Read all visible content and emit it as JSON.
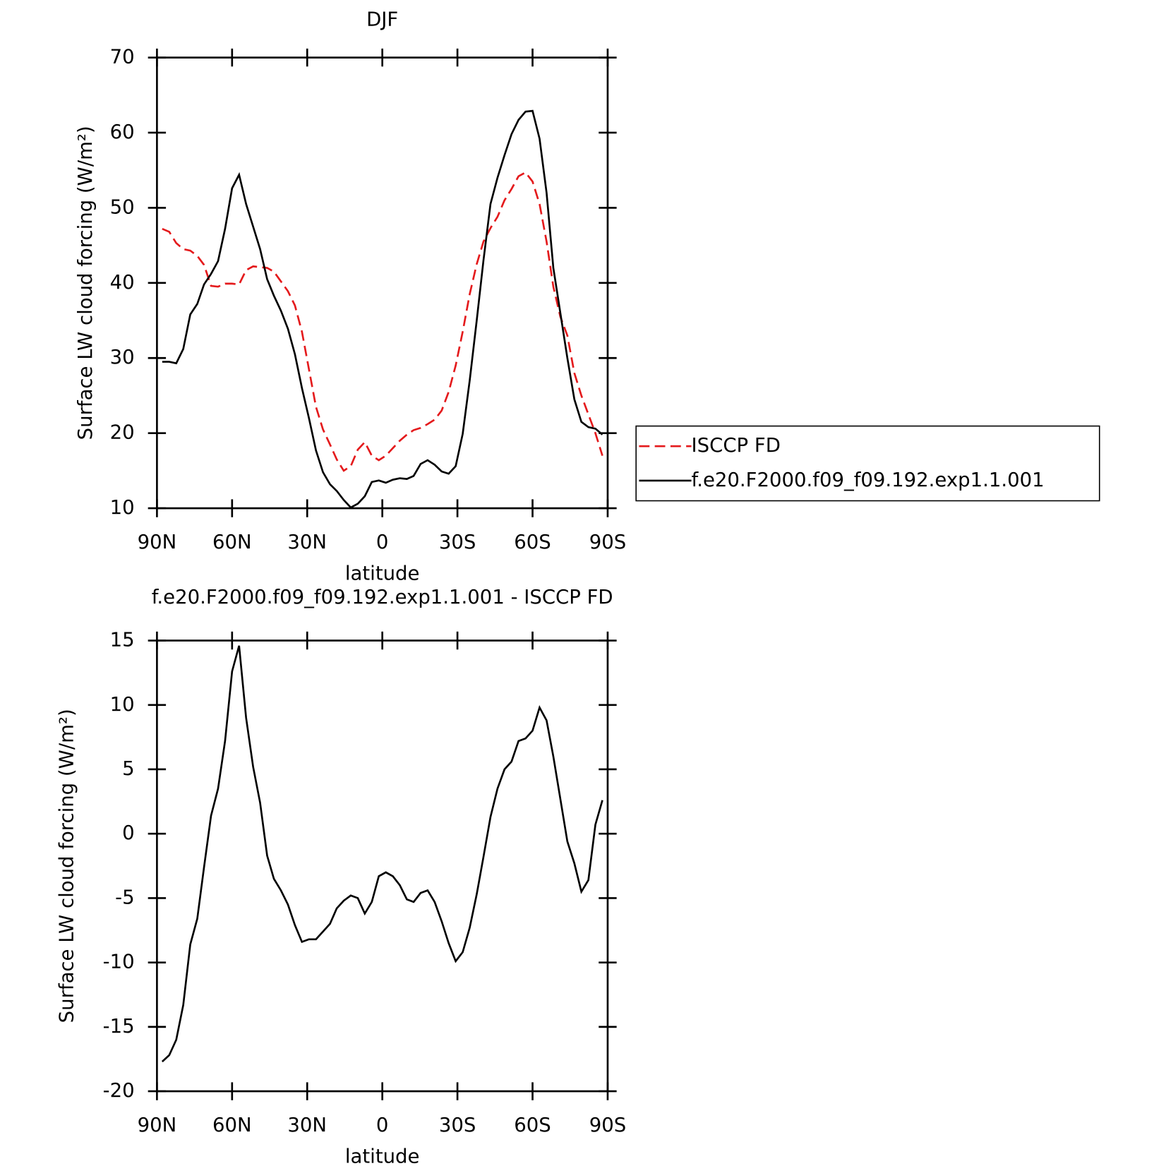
{
  "chart_data": [
    {
      "type": "line",
      "title": "DJF",
      "xlabel": "latitude",
      "ylabel": "Surface LW cloud forcing (W/m²)",
      "x": [
        87.9,
        85.1,
        82.3,
        79.5,
        76.7,
        73.9,
        71.2,
        68.4,
        65.6,
        62.8,
        60.0,
        57.2,
        54.4,
        51.6,
        48.8,
        46.0,
        43.3,
        40.5,
        37.7,
        34.9,
        32.1,
        29.3,
        26.5,
        23.7,
        20.9,
        18.2,
        15.4,
        12.6,
        9.8,
        7.0,
        4.2,
        1.4,
        -1.4,
        -4.2,
        -7.0,
        -9.8,
        -12.5,
        -15.3,
        -18.1,
        -20.9,
        -23.7,
        -26.5,
        -29.3,
        -32.1,
        -34.9,
        -37.7,
        -40.4,
        -43.2,
        -46.0,
        -48.8,
        -51.6,
        -54.4,
        -57.2,
        -60.0,
        -62.8,
        -65.6,
        -68.3,
        -71.1,
        -73.9,
        -76.7,
        -79.5,
        -82.3,
        -85.1,
        -87.9
      ],
      "series": [
        {
          "name": "ISCCP FD",
          "color": "#e41a1c",
          "dash": "dashed",
          "values": [
            47.2,
            46.8,
            45.3,
            44.5,
            44.3,
            43.6,
            42.4,
            39.6,
            39.5,
            39.9,
            39.9,
            39.8,
            41.7,
            42.2,
            42.1,
            42.0,
            41.5,
            40.2,
            38.9,
            37.0,
            33.5,
            28.5,
            23.5,
            20.5,
            18.5,
            16.5,
            15.0,
            15.6,
            17.8,
            18.8,
            17.0,
            16.4,
            17.0,
            18.0,
            19.0,
            19.8,
            20.4,
            20.7,
            21.2,
            21.8,
            23.0,
            25.5,
            29.0,
            33.5,
            38.5,
            42.5,
            45.5,
            47.3,
            48.8,
            51.0,
            52.5,
            54.2,
            54.7,
            53.5,
            50.5,
            45.5,
            39.5,
            35.5,
            33.0,
            28.0,
            25.0,
            22.5,
            20.0,
            17.0
          ]
        },
        {
          "name": "f.e20.F2000.f09_f09.192.exp1.1.001",
          "color": "#000000",
          "dash": "solid",
          "values": [
            29.5,
            29.5,
            29.3,
            31.2,
            35.8,
            37.2,
            39.8,
            41.2,
            42.9,
            47.2,
            52.6,
            54.4,
            50.5,
            47.5,
            44.5,
            40.5,
            38.3,
            36.3,
            33.9,
            30.5,
            26.0,
            22.0,
            17.7,
            14.8,
            13.2,
            12.3,
            11.1,
            10.1,
            10.6,
            11.6,
            13.5,
            13.7,
            13.4,
            13.8,
            14.0,
            13.9,
            14.3,
            15.9,
            16.4,
            15.8,
            14.9,
            14.6,
            15.6,
            19.9,
            27.0,
            35.0,
            43.0,
            50.5,
            54.0,
            57.0,
            59.8,
            61.7,
            62.8,
            62.9,
            59.2,
            52.0,
            42.0,
            36.0,
            30.0,
            24.5,
            21.5,
            20.8,
            20.6,
            19.8
          ]
        }
      ],
      "xlim": [
        90,
        -90
      ],
      "xticks": [
        {
          "value": 90,
          "label": "90N"
        },
        {
          "value": 60,
          "label": "60N"
        },
        {
          "value": 30,
          "label": "30N"
        },
        0,
        {
          "value": -30,
          "label": "30S"
        },
        {
          "value": -60,
          "label": "60S"
        },
        {
          "value": -90,
          "label": "90S"
        }
      ],
      "ylim": [
        10,
        70
      ],
      "yticks": [
        10,
        20,
        30,
        40,
        50,
        60,
        70
      ],
      "legend": "right"
    },
    {
      "type": "line",
      "title": "f.e20.F2000.f09_f09.192.exp1.1.001 - ISCCP FD",
      "xlabel": "latitude",
      "ylabel": "Surface LW cloud forcing (W/m²)",
      "x": [
        87.9,
        85.1,
        82.3,
        79.5,
        76.7,
        73.9,
        71.2,
        68.4,
        65.6,
        62.8,
        60.0,
        57.2,
        54.4,
        51.6,
        48.8,
        46.0,
        43.3,
        40.5,
        37.7,
        34.9,
        32.1,
        29.3,
        26.5,
        23.7,
        20.9,
        18.2,
        15.4,
        12.6,
        9.8,
        7.0,
        4.2,
        1.4,
        -1.4,
        -4.2,
        -7.0,
        -9.8,
        -12.5,
        -15.3,
        -18.1,
        -20.9,
        -23.7,
        -26.5,
        -29.3,
        -32.1,
        -34.9,
        -37.7,
        -40.4,
        -43.2,
        -46.0,
        -48.8,
        -51.6,
        -54.4,
        -57.2,
        -60.0,
        -62.8,
        -65.6,
        -68.3,
        -71.1,
        -73.9,
        -76.7,
        -79.5,
        -82.3,
        -85.1,
        -87.9
      ],
      "series": [
        {
          "color": "#000000",
          "dash": "solid",
          "values": [
            -17.7,
            -17.2,
            -16.0,
            -13.3,
            -8.6,
            -6.6,
            -2.6,
            1.4,
            3.5,
            7.2,
            12.6,
            14.6,
            9.0,
            5.2,
            2.4,
            -1.7,
            -3.5,
            -4.4,
            -5.5,
            -7.1,
            -8.4,
            -8.2,
            -8.2,
            -7.6,
            -7.0,
            -5.8,
            -5.2,
            -4.8,
            -5.0,
            -6.2,
            -5.3,
            -3.3,
            -3.0,
            -3.3,
            -4.0,
            -5.1,
            -5.3,
            -4.6,
            -4.4,
            -5.3,
            -6.8,
            -8.5,
            -9.9,
            -9.2,
            -7.3,
            -4.7,
            -1.8,
            1.3,
            3.5,
            5.0,
            5.6,
            7.2,
            7.4,
            8.0,
            9.8,
            8.8,
            6.0,
            2.7,
            -0.6,
            -2.3,
            -4.5,
            -3.6,
            0.7,
            2.6
          ]
        }
      ],
      "xlim": [
        90,
        -90
      ],
      "xticks": [
        {
          "value": 90,
          "label": "90N"
        },
        {
          "value": 60,
          "label": "60N"
        },
        {
          "value": 30,
          "label": "30N"
        },
        0,
        {
          "value": -30,
          "label": "30S"
        },
        {
          "value": -60,
          "label": "60S"
        },
        {
          "value": -90,
          "label": "90S"
        }
      ],
      "ylim": [
        -20,
        15
      ],
      "yticks": [
        -20,
        -15,
        -10,
        -5,
        0,
        5,
        10,
        15
      ]
    }
  ]
}
